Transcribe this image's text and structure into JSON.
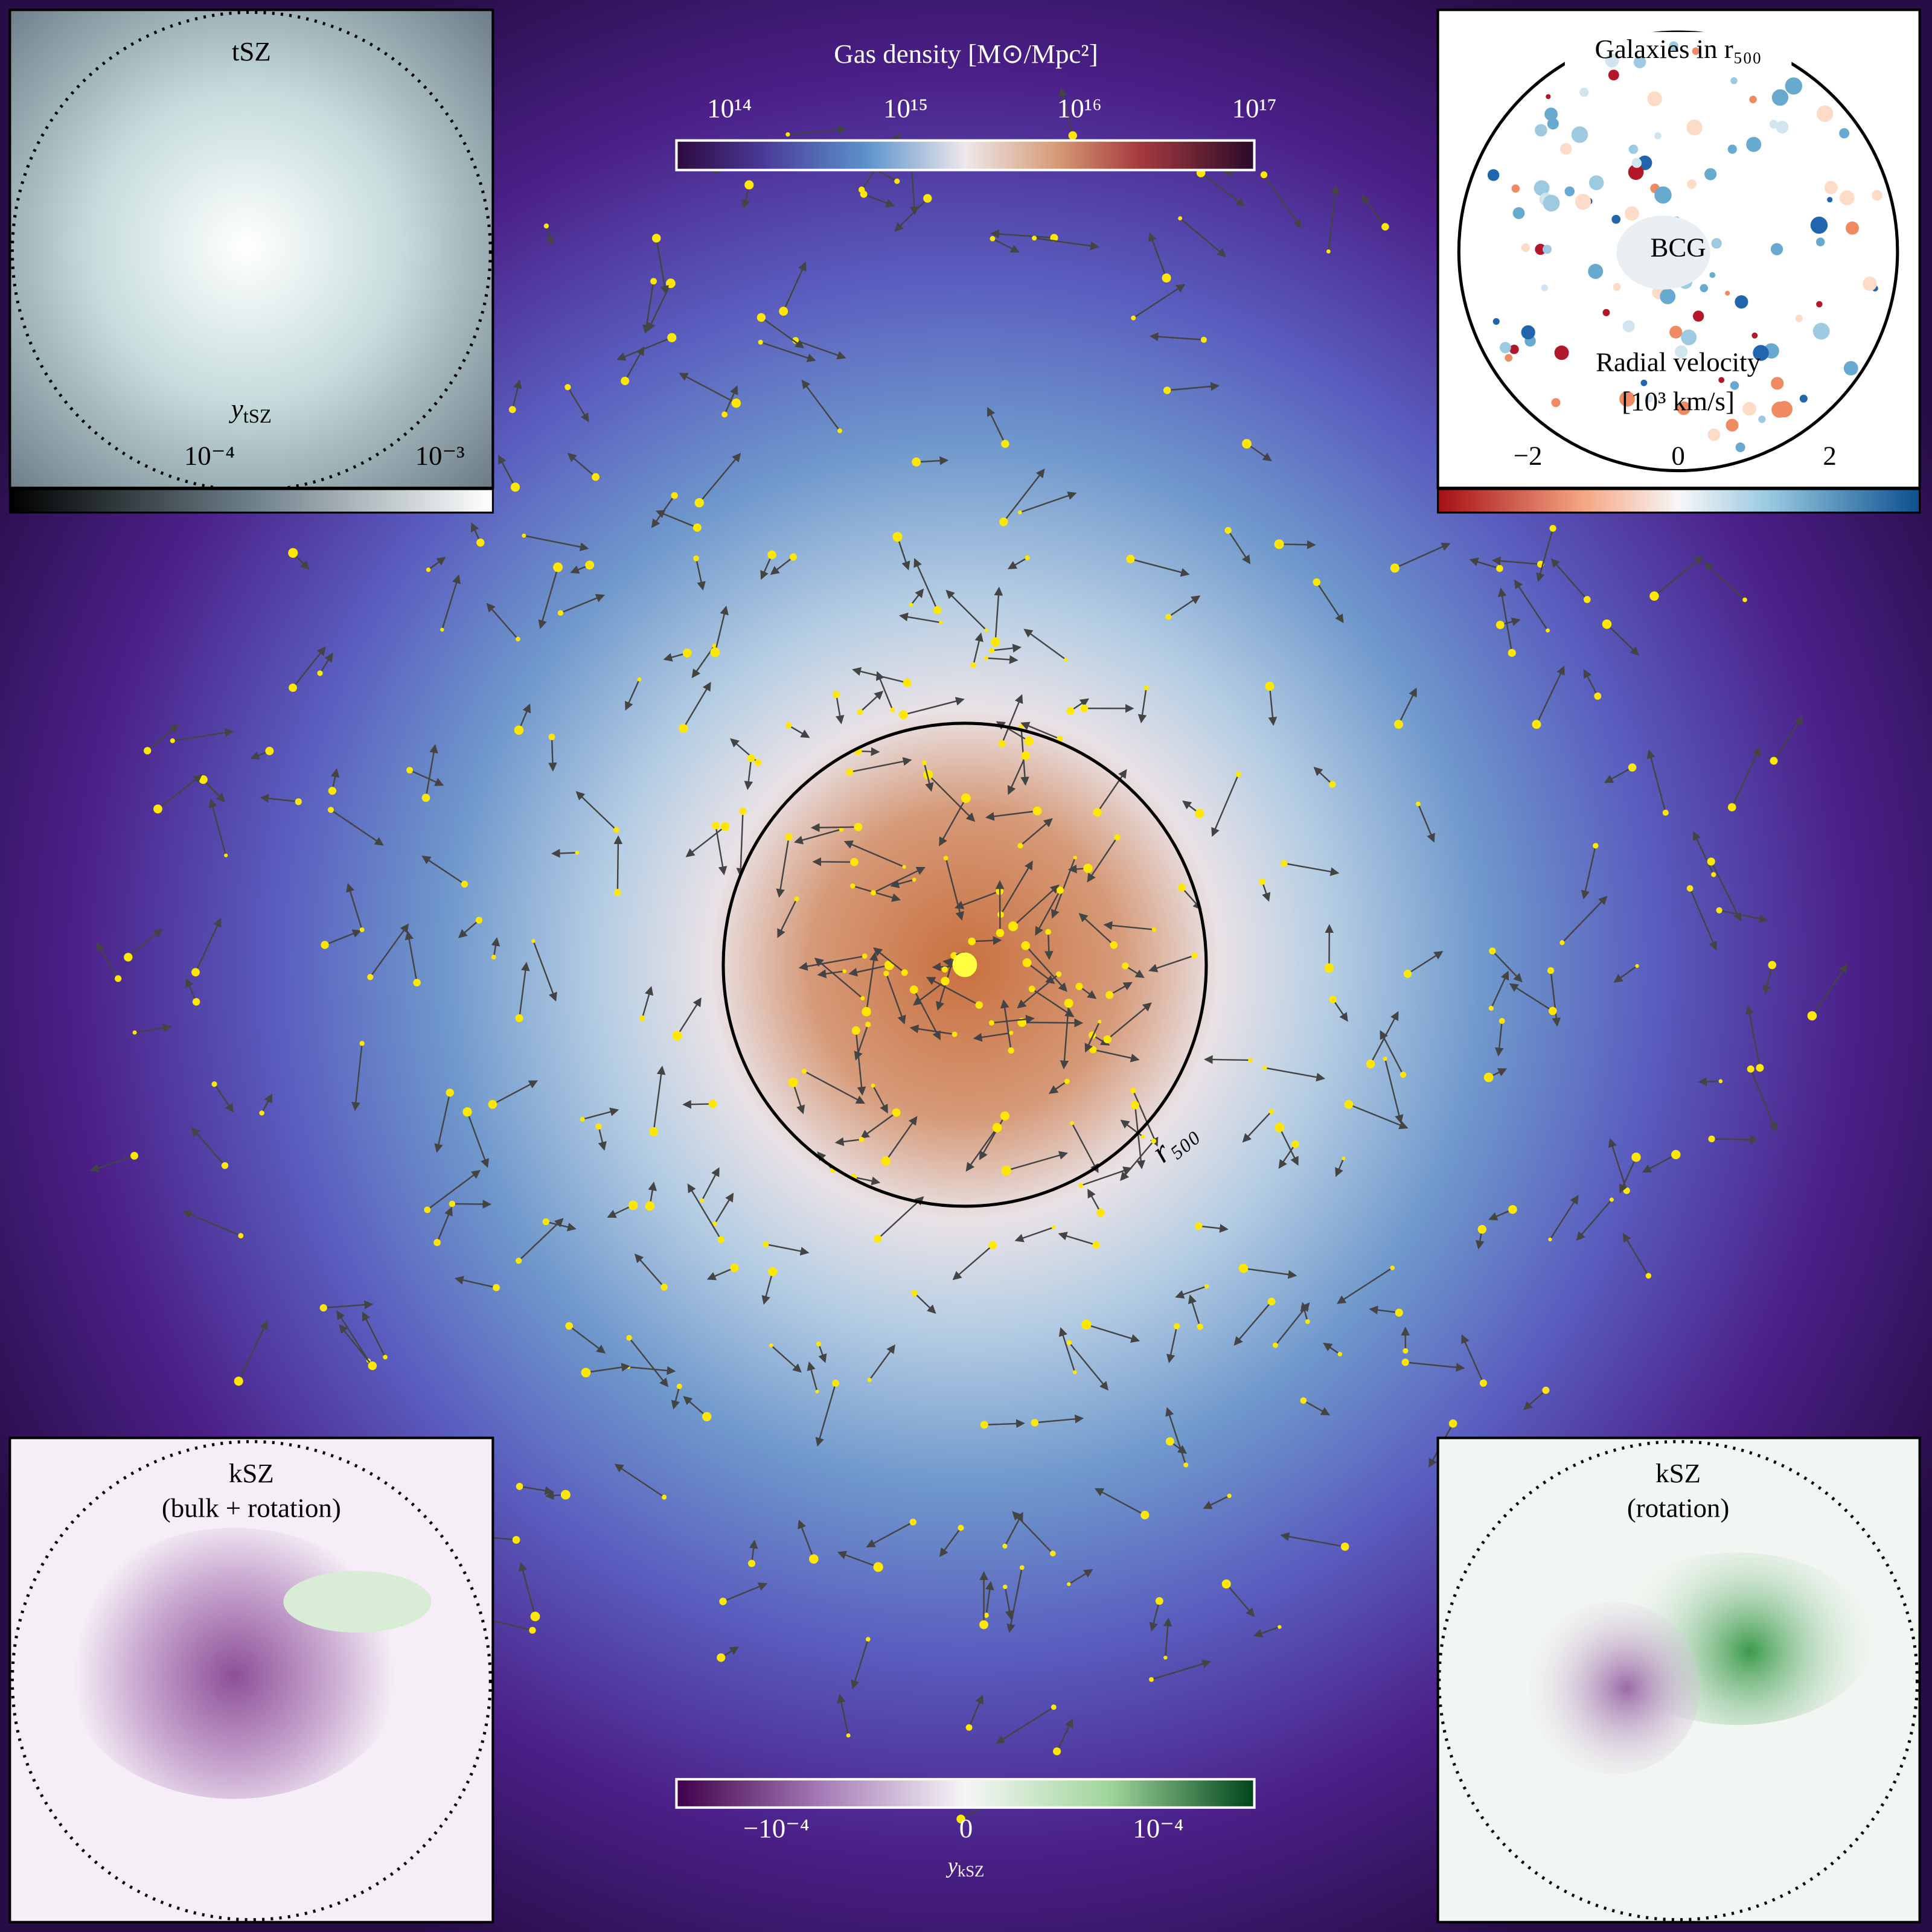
{
  "main": {
    "colorbar_label": "Gas density [M⊙/Mpc²]",
    "colorbar_ticks": [
      "10¹⁴",
      "10¹⁵",
      "10¹⁶",
      "10¹⁷"
    ],
    "circle_label": "r₅₀₀"
  },
  "tsz_inset": {
    "title": "tSZ",
    "label_symbol": "y",
    "label_subscript": "tSZ",
    "colorbar_ticks": [
      "10⁻⁴",
      "10⁻³"
    ]
  },
  "galaxies_inset": {
    "title": "Galaxies in r₅₀₀",
    "center_label": "BCG",
    "colorbar_label": "Radial velocity",
    "colorbar_unit": "[10³ km/s]",
    "colorbar_ticks": [
      "−2",
      "0",
      "2"
    ]
  },
  "ksz_bulk_inset": {
    "title": "kSZ",
    "subtitle": "(bulk + rotation)"
  },
  "ksz_rotation_inset": {
    "title": "kSZ",
    "subtitle": "(rotation)"
  },
  "ksz_colorbar": {
    "ticks": [
      "−10⁻⁴",
      "0",
      "10⁻⁴"
    ],
    "label_symbol": "y",
    "label_subscript": "kSZ"
  }
}
